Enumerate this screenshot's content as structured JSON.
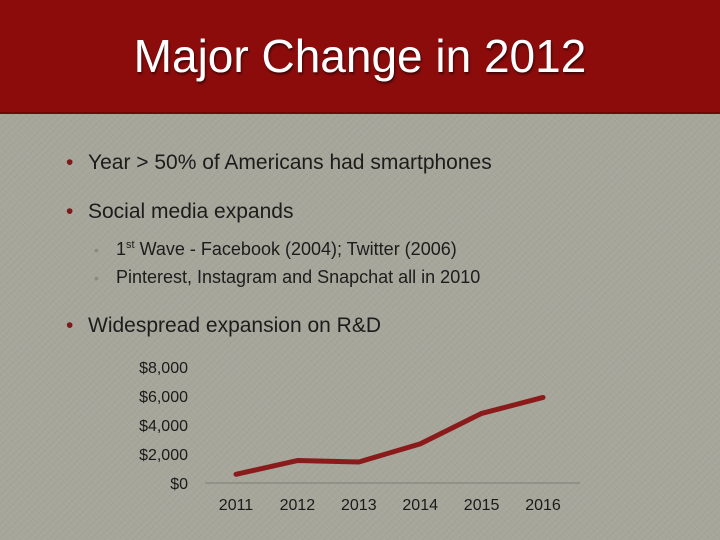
{
  "slide": {
    "title": "Major Change in 2012",
    "bullets": [
      {
        "text": "Year > 50% of Americans had smartphones"
      },
      {
        "text": "Social media expands"
      },
      {
        "text": "Widespread expansion on R&D"
      }
    ],
    "sub_bullets": [
      {
        "prefix": "1",
        "sup": "st",
        "rest": " Wave - Facebook (2004); Twitter (2006)"
      },
      {
        "text": "Pinterest, Instagram and Snapchat all in 2010"
      }
    ]
  },
  "colors": {
    "title_bar": "#8c0c0c",
    "line": "#8b1a1a",
    "background": "#a6a69b"
  },
  "chart_data": {
    "type": "line",
    "title": "",
    "xlabel": "",
    "ylabel": "",
    "x": [
      "2011",
      "2012",
      "2013",
      "2014",
      "2015",
      "2016"
    ],
    "ylim": [
      0,
      8000
    ],
    "y_ticks": [
      "$0",
      "$2,000",
      "$4,000",
      "$6,000",
      "$8,000"
    ],
    "y_tick_values": [
      0,
      2000,
      4000,
      6000,
      8000
    ],
    "series": [
      {
        "values": [
          600,
          1550,
          1450,
          2700,
          4800,
          5900
        ]
      }
    ],
    "grid": false,
    "legend": "none"
  }
}
